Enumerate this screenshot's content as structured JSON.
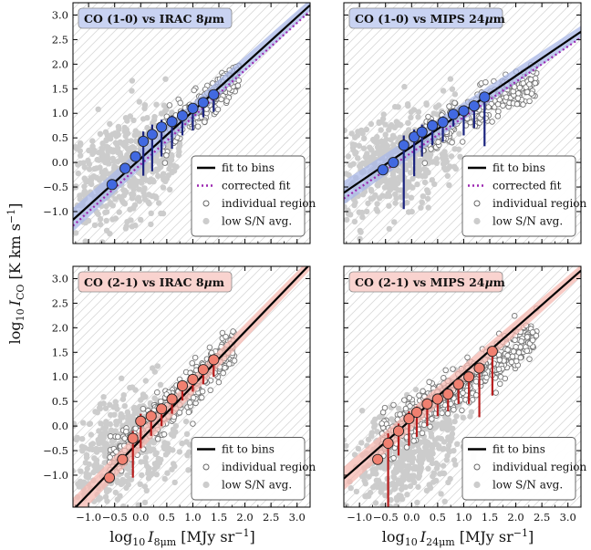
{
  "figure": {
    "ylabel": "log₁₀ I_CO [K km s⁻¹]",
    "ylabel_parts": {
      "prefix": "log",
      "base": "10",
      "var": "I",
      "sub": "CO",
      "unit": " [K km s",
      "exp": "−1",
      "close": "]"
    },
    "xlabel_left": "log₁₀ I_8μm [MJy sr⁻¹]",
    "xlabel_left_parts": {
      "prefix": "log",
      "base": "10",
      "var": "I",
      "sub": "8μm",
      "unit": " [MJy sr",
      "exp": "−1",
      "close": "]"
    },
    "xlabel_right": "log₁₀ I_24μm [MJy sr⁻¹]",
    "xlabel_right_parts": {
      "prefix": "log",
      "base": "10",
      "var": "I",
      "sub": "24μm",
      "unit": " [MJy sr",
      "exp": "−1",
      "close": "]"
    }
  },
  "colors": {
    "bin_blue": "#4169e1",
    "bin_red": "#f08070",
    "err_blue": "#1a237e",
    "err_red": "#b71c1c",
    "band_blue": "#aab8e8",
    "band_red": "#f5b8b0",
    "title_blue_bg": "#c9d3f2",
    "title_red_bg": "#f9d3cf",
    "gray": "#cccccc",
    "hatch": "#d6d6d6",
    "fit": "#000000",
    "corrected": "#9c27b0"
  },
  "chart_data": [
    {
      "type": "scatter",
      "title": "CO (1-0) vs IRAC 8μm",
      "title_parts": {
        "pre": "CO (1-0) vs IRAC 8",
        "mu": "μ",
        "post": "m"
      },
      "theme": "blue",
      "xlim": [
        -1.3,
        3.25
      ],
      "ylim": [
        -1.65,
        3.25
      ],
      "xticks": [
        -1.0,
        -0.5,
        0.0,
        0.5,
        1.0,
        1.5,
        2.0,
        2.5,
        3.0
      ],
      "xtick_labels": [
        "−1.0",
        "−0.5",
        "0.0",
        "0.5",
        "1.0",
        "1.5",
        "2.0",
        "2.5",
        "3.0"
      ],
      "yticks": [
        -1.0,
        -0.5,
        0.0,
        0.5,
        1.0,
        1.5,
        2.0,
        2.5,
        3.0
      ],
      "ytick_labels": [
        "−1.0",
        "−0.5",
        "0.0",
        "0.5",
        "1.0",
        "1.5",
        "2.0",
        "2.5",
        "3.0"
      ],
      "show_xticklabels": false,
      "show_yticklabels": true,
      "fit_line": {
        "slope": 0.96,
        "intercept": 0.08
      },
      "corrected_line": {
        "slope": 0.96,
        "intercept": -0.04
      },
      "band_halfwidth": 0.12,
      "bins": {
        "x": [
          -0.55,
          -0.3,
          -0.1,
          0.05,
          0.22,
          0.4,
          0.6,
          0.8,
          1.0,
          1.2,
          1.4
        ],
        "y": [
          -0.45,
          -0.12,
          0.12,
          0.43,
          0.57,
          0.72,
          0.83,
          0.95,
          1.1,
          1.22,
          1.38
        ],
        "err_low": [
          0,
          0,
          0.1,
          0.7,
          0.75,
          0.6,
          0.55,
          0.4,
          0.45,
          0.3,
          0.35
        ],
        "err_high": [
          0,
          0,
          0,
          0.2,
          0.2,
          0.15,
          0.12,
          0.12,
          0.1,
          0.05,
          0.05
        ]
      },
      "cloud_gray": {
        "x_range": [
          -1.3,
          0.8
        ],
        "center": [
          -0.3,
          -0.1
        ],
        "spread": [
          0.6,
          0.55
        ],
        "n": 520,
        "seed": 11
      },
      "cloud_open": {
        "x_range": [
          0.4,
          1.9
        ],
        "slope": 0.85,
        "intercept": 0.15,
        "spread": 0.18,
        "n": 260,
        "seed": 21
      },
      "legend": [
        "fit to bins",
        "corrected fit",
        "individual region",
        "low S/N avg."
      ]
    },
    {
      "type": "scatter",
      "title": "CO (1-0) vs MIPS 24μm",
      "title_parts": {
        "pre": "CO (1-0) vs MIPS 24",
        "mu": "μ",
        "post": "m"
      },
      "theme": "blue",
      "xlim": [
        -1.3,
        3.25
      ],
      "ylim": [
        -1.65,
        3.25
      ],
      "xticks": [
        -1.0,
        -0.5,
        0.0,
        0.5,
        1.0,
        1.5,
        2.0,
        2.5,
        3.0
      ],
      "xtick_labels": [
        "−1.0",
        "−0.5",
        "0.0",
        "0.5",
        "1.0",
        "1.5",
        "2.0",
        "2.5",
        "3.0"
      ],
      "yticks": [
        -1.0,
        -0.5,
        0.0,
        0.5,
        1.0,
        1.5,
        2.0,
        2.5,
        3.0
      ],
      "ytick_labels": [
        "−1.0",
        "−0.5",
        "0.0",
        "0.5",
        "1.0",
        "1.5",
        "2.0",
        "2.5",
        "3.0"
      ],
      "show_xticklabels": false,
      "show_yticklabels": false,
      "fit_line": {
        "slope": 0.72,
        "intercept": 0.32
      },
      "corrected_line": {
        "slope": 0.72,
        "intercept": 0.2
      },
      "band_halfwidth": 0.12,
      "bins": {
        "x": [
          -0.55,
          -0.35,
          -0.15,
          0.05,
          0.2,
          0.4,
          0.6,
          0.8,
          1.0,
          1.2,
          1.4
        ],
        "y": [
          -0.15,
          0.0,
          0.35,
          0.52,
          0.62,
          0.75,
          0.82,
          0.98,
          1.05,
          1.15,
          1.33
        ],
        "err_low": [
          0,
          0.05,
          1.3,
          0.8,
          0.5,
          0.4,
          0.4,
          0.25,
          0.5,
          0.45,
          1.0
        ],
        "err_high": [
          0,
          0,
          0.2,
          0.15,
          0.15,
          0.12,
          0.12,
          0.1,
          0.1,
          0.08,
          0.1
        ]
      },
      "cloud_gray": {
        "x_range": [
          -1.3,
          1.0
        ],
        "center": [
          -0.3,
          0.0
        ],
        "spread": [
          0.65,
          0.5
        ],
        "n": 520,
        "seed": 31
      },
      "cloud_open": {
        "x_range": [
          0.2,
          2.4
        ],
        "slope": 0.55,
        "intercept": 0.35,
        "spread": 0.2,
        "n": 300,
        "seed": 41
      },
      "legend": [
        "fit to bins",
        "corrected fit",
        "individual region",
        "low S/N avg."
      ]
    },
    {
      "type": "scatter",
      "title": "CO (2-1) vs IRAC 8μm",
      "title_parts": {
        "pre": "CO (2-1) vs IRAC 8",
        "mu": "μ",
        "post": "m"
      },
      "theme": "red",
      "xlim": [
        -1.3,
        3.25
      ],
      "ylim": [
        -1.65,
        3.25
      ],
      "xticks": [
        -1.0,
        -0.5,
        0.0,
        0.5,
        1.0,
        1.5,
        2.0,
        2.5,
        3.0
      ],
      "xtick_labels": [
        "−1.0",
        "−0.5",
        "0.0",
        "0.5",
        "1.0",
        "1.5",
        "2.0",
        "2.5",
        "3.0"
      ],
      "yticks": [
        -1.0,
        -0.5,
        0.0,
        0.5,
        1.0,
        1.5,
        2.0,
        2.5,
        3.0
      ],
      "ytick_labels": [
        "−1.0",
        "−0.5",
        "0.0",
        "0.5",
        "1.0",
        "1.5",
        "2.0",
        "2.5",
        "3.0"
      ],
      "show_xticklabels": true,
      "show_yticklabels": true,
      "fit_line": {
        "slope": 1.1,
        "intercept": -0.28
      },
      "band_halfwidth": 0.12,
      "bins": {
        "x": [
          -0.6,
          -0.35,
          -0.15,
          0.0,
          0.2,
          0.4,
          0.6,
          0.8,
          1.0,
          1.2,
          1.4
        ],
        "y": [
          -1.05,
          -0.68,
          -0.25,
          0.1,
          0.2,
          0.35,
          0.55,
          0.82,
          0.95,
          1.15,
          1.35
        ],
        "err_low": [
          0,
          0,
          0.8,
          0.55,
          0.4,
          0.35,
          0.3,
          0.3,
          0.25,
          0.3,
          0.35
        ],
        "err_high": [
          0,
          0,
          0.15,
          0.15,
          0.12,
          0.1,
          0.1,
          0.1,
          0.08,
          0.05,
          0.05
        ]
      },
      "cloud_gray": {
        "x_range": [
          -1.3,
          1.0
        ],
        "center": [
          -0.2,
          -0.4
        ],
        "spread": [
          0.55,
          0.55
        ],
        "n": 460,
        "seed": 51
      },
      "cloud_open": {
        "x_range": [
          -0.6,
          1.8
        ],
        "slope": 1.0,
        "intercept": -0.15,
        "spread": 0.2,
        "n": 420,
        "seed": 61
      },
      "legend": [
        "fit to bins",
        "individual region",
        "low S/N avg."
      ]
    },
    {
      "type": "scatter",
      "title": "CO (2-1) vs MIPS 24μm",
      "title_parts": {
        "pre": "CO (2-1) vs MIPS 24",
        "mu": "μ",
        "post": "m"
      },
      "theme": "red",
      "xlim": [
        -1.3,
        3.25
      ],
      "ylim": [
        -1.65,
        3.25
      ],
      "xticks": [
        -1.0,
        -0.5,
        0.0,
        0.5,
        1.0,
        1.5,
        2.0,
        2.5,
        3.0
      ],
      "xtick_labels": [
        "−1.0",
        "−0.5",
        "0.0",
        "0.5",
        "1.0",
        "1.5",
        "2.0",
        "2.5",
        "3.0"
      ],
      "yticks": [
        -1.0,
        -0.5,
        0.0,
        0.5,
        1.0,
        1.5,
        2.0,
        2.5,
        3.0
      ],
      "ytick_labels": [
        "−1.0",
        "−0.5",
        "0.0",
        "0.5",
        "1.0",
        "1.5",
        "2.0",
        "2.5",
        "3.0"
      ],
      "show_xticklabels": true,
      "show_yticklabels": false,
      "fit_line": {
        "slope": 0.93,
        "intercept": 0.14
      },
      "band_halfwidth": 0.12,
      "bins": {
        "x": [
          -0.65,
          -0.45,
          -0.25,
          -0.05,
          0.1,
          0.3,
          0.5,
          0.7,
          0.9,
          1.1,
          1.3,
          1.55
        ],
        "y": [
          -0.68,
          -0.35,
          -0.1,
          0.15,
          0.28,
          0.45,
          0.55,
          0.65,
          0.85,
          1.0,
          1.18,
          1.52
        ],
        "err_low": [
          0,
          1.4,
          0.5,
          0.55,
          0.5,
          0.45,
          0.35,
          0.35,
          0.4,
          0.55,
          1.0,
          0.9
        ],
        "err_high": [
          0,
          0.2,
          0.15,
          0.15,
          0.12,
          0.1,
          0.1,
          0.1,
          0.08,
          0.08,
          0.1,
          0.05
        ]
      },
      "cloud_gray": {
        "x_range": [
          -1.3,
          1.2
        ],
        "center": [
          -0.1,
          -0.6
        ],
        "spread": [
          0.6,
          0.55
        ],
        "n": 460,
        "seed": 71
      },
      "cloud_open": {
        "x_range": [
          -0.6,
          2.4
        ],
        "slope": 0.72,
        "intercept": 0.15,
        "spread": 0.22,
        "n": 520,
        "seed": 81
      },
      "legend": [
        "fit to bins",
        "individual region",
        "low S/N avg."
      ]
    }
  ]
}
